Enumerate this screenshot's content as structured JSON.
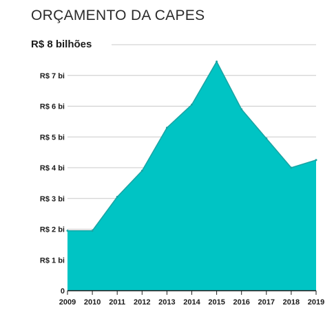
{
  "title": "ORÇAMENTO DA CAPES",
  "colors": {
    "area_fill": "#00c4c4",
    "area_stroke": "#1aa3a3",
    "gridline": "#c8c8c8",
    "axis": "#1a1a1a",
    "text": "#1a1a1a"
  },
  "chart_data": {
    "type": "area",
    "title": "ORÇAMENTO DA CAPES",
    "x": [
      "2009",
      "2010",
      "2011",
      "2012",
      "2013",
      "2014",
      "2015",
      "2016",
      "2017",
      "2018",
      "2019"
    ],
    "values": [
      1.95,
      1.95,
      3.05,
      3.9,
      5.3,
      6.05,
      7.45,
      5.9,
      4.95,
      4.0,
      4.25
    ],
    "ylim": [
      0,
      8
    ],
    "yticks": [
      0,
      1,
      2,
      3,
      4,
      5,
      6,
      7,
      8
    ],
    "ytick_labels": [
      "0",
      "R$ 1 bi",
      "R$ 2 bi",
      "R$ 3 bi",
      "R$ 4 bi",
      "R$ 5 bi",
      "R$ 6 bi",
      "R$ 7 bi",
      "R$ 8 bilhões"
    ],
    "xlabel": "",
    "ylabel": "",
    "grid": true,
    "legend": "none"
  }
}
